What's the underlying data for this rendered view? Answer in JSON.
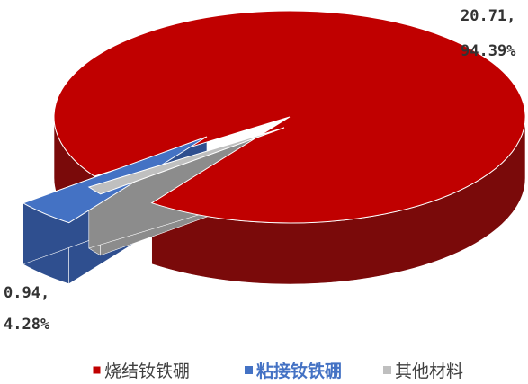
{
  "chart_data": {
    "type": "pie",
    "title": "",
    "series": [
      {
        "name": "烧结钕铁硼",
        "value": 20.71,
        "percent": "94.39%",
        "label_value": "20.71,",
        "label_percent": "94.39%",
        "color": "#C00000",
        "side_color": "#7A0A0A",
        "legend_bold": false
      },
      {
        "name": "粘接钕铁硼",
        "value": 0.94,
        "percent": "4.28%",
        "label_value": "0.94,",
        "label_percent": "4.28%",
        "color": "#4472C4",
        "side_color": "#2F4F8F",
        "legend_bold": true
      },
      {
        "name": "其他材料",
        "value": 0.29,
        "percent": "1.33%",
        "label_value": "",
        "label_percent": "",
        "color": "#BFBFBF",
        "side_color": "#8C8C8C",
        "legend_bold": false
      }
    ],
    "legend_position": "bottom",
    "style": "3d-exploded-pie"
  }
}
